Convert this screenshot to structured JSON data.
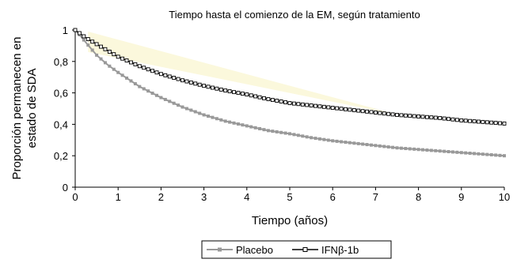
{
  "chart_data": {
    "type": "line",
    "title": "Tiempo hasta el comienzo de  la EM, según tratamiento",
    "xlabel": "Tiempo (años)",
    "ylabel_lines": [
      "Proporción permanecen en",
      "estado de SDA"
    ],
    "xlim": [
      0,
      10
    ],
    "ylim": [
      0,
      1
    ],
    "x_ticks": [
      "0",
      "1",
      "2",
      "3",
      "4",
      "5",
      "6",
      "7",
      "8",
      "9",
      "10"
    ],
    "y_ticks": [
      "0",
      "0,2",
      "0,4",
      "0,6",
      "0,8",
      "1"
    ],
    "grid": false,
    "legend_position": "bottom-center",
    "colors": {
      "placebo": "#999999",
      "ifn": "#000000",
      "band": "#fbf8dc"
    },
    "series": [
      {
        "name": "Placebo",
        "x": [
          0,
          0.1,
          0.25,
          0.5,
          0.75,
          1,
          1.5,
          2,
          2.5,
          3,
          3.5,
          4,
          4.5,
          5,
          5.5,
          6,
          6.5,
          7,
          7.5,
          8,
          8.5,
          9,
          9.5,
          10
        ],
        "values": [
          1.0,
          0.97,
          0.92,
          0.84,
          0.78,
          0.73,
          0.64,
          0.57,
          0.51,
          0.46,
          0.42,
          0.39,
          0.36,
          0.34,
          0.315,
          0.295,
          0.28,
          0.265,
          0.25,
          0.24,
          0.23,
          0.22,
          0.21,
          0.2
        ]
      },
      {
        "name": "IFNβ-1b",
        "x": [
          0,
          0.1,
          0.25,
          0.5,
          0.75,
          1,
          1.5,
          2,
          2.5,
          3,
          3.5,
          4,
          4.5,
          5,
          5.5,
          6,
          6.5,
          7,
          7.5,
          8,
          8.5,
          9,
          9.5,
          10
        ],
        "values": [
          1.0,
          0.98,
          0.95,
          0.91,
          0.87,
          0.83,
          0.77,
          0.72,
          0.68,
          0.645,
          0.615,
          0.59,
          0.56,
          0.535,
          0.52,
          0.505,
          0.49,
          0.475,
          0.46,
          0.45,
          0.44,
          0.425,
          0.415,
          0.405
        ]
      }
    ],
    "band": {
      "x": [
        0.3,
        7.6
      ],
      "values": [
        0.99,
        0.455
      ]
    }
  }
}
